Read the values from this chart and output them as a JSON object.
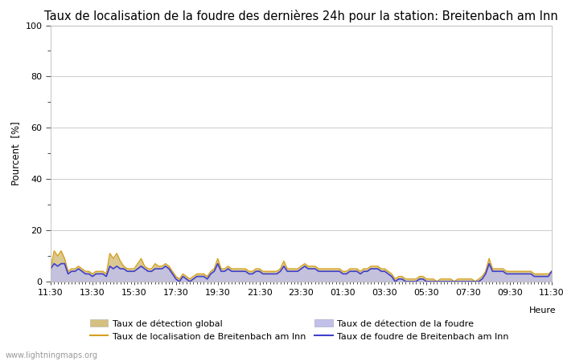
{
  "title": "Taux de localisation de la foudre des dernières 24h pour la station: Breitenbach am Inn",
  "ylabel": "Pourcent  [%]",
  "xlabel_right": "Heure",
  "watermark": "www.lightningmaps.org",
  "x_ticks": [
    "11:30",
    "13:30",
    "15:30",
    "17:30",
    "19:30",
    "21:30",
    "23:30",
    "01:30",
    "03:30",
    "05:30",
    "07:30",
    "09:30",
    "11:30"
  ],
  "ylim": [
    0,
    100
  ],
  "yticks": [
    0,
    20,
    40,
    60,
    80,
    100
  ],
  "yticks_minor": [
    10,
    30,
    50,
    70,
    90
  ],
  "color_global_fill": "#d4c080",
  "color_global_line": "#d4a020",
  "color_foudre_fill": "#c0c0e8",
  "color_foudre_line": "#4040cc",
  "background_color": "#ffffff",
  "grid_color": "#cccccc",
  "title_fontsize": 10.5,
  "label_fontsize": 8.5,
  "tick_fontsize": 8,
  "legend_fontsize": 8,
  "global_detection": [
    5,
    12,
    10,
    12,
    9,
    4,
    5,
    5,
    6,
    5,
    4,
    4,
    3,
    4,
    4,
    4,
    3,
    11,
    9,
    11,
    8,
    6,
    5,
    5,
    5,
    7,
    9,
    6,
    5,
    5,
    7,
    6,
    6,
    7,
    6,
    4,
    2,
    1,
    3,
    2,
    1,
    2,
    3,
    3,
    3,
    2,
    4,
    5,
    9,
    5,
    5,
    6,
    5,
    5,
    5,
    5,
    5,
    4,
    4,
    5,
    5,
    4,
    4,
    4,
    4,
    4,
    5,
    8,
    5,
    5,
    5,
    5,
    6,
    7,
    6,
    6,
    6,
    5,
    5,
    5,
    5,
    5,
    5,
    5,
    4,
    4,
    5,
    5,
    5,
    4,
    5,
    5,
    6,
    6,
    6,
    5,
    5,
    4,
    3,
    1,
    2,
    2,
    1,
    1,
    1,
    1,
    2,
    2,
    1,
    1,
    1,
    0,
    1,
    1,
    1,
    1,
    0,
    1,
    1,
    1,
    1,
    1,
    0,
    1,
    2,
    4,
    9,
    5,
    5,
    5,
    5,
    4,
    4,
    4,
    4,
    4,
    4,
    4,
    4,
    3,
    3,
    3,
    3,
    3,
    4
  ],
  "foudre_detection": [
    5,
    7,
    6,
    7,
    7,
    3,
    4,
    4,
    5,
    4,
    3,
    3,
    2,
    3,
    3,
    3,
    2,
    6,
    5,
    6,
    5,
    5,
    4,
    4,
    4,
    5,
    6,
    5,
    4,
    4,
    5,
    5,
    5,
    6,
    5,
    3,
    1,
    0,
    2,
    1,
    0,
    1,
    2,
    2,
    2,
    1,
    3,
    4,
    7,
    4,
    4,
    5,
    4,
    4,
    4,
    4,
    4,
    3,
    3,
    4,
    4,
    3,
    3,
    3,
    3,
    3,
    4,
    6,
    4,
    4,
    4,
    4,
    5,
    6,
    5,
    5,
    5,
    4,
    4,
    4,
    4,
    4,
    4,
    4,
    3,
    3,
    4,
    4,
    4,
    3,
    4,
    4,
    5,
    5,
    5,
    4,
    4,
    3,
    2,
    0,
    1,
    1,
    0,
    0,
    0,
    0,
    1,
    1,
    0,
    0,
    0,
    0,
    0,
    0,
    0,
    0,
    0,
    0,
    0,
    0,
    0,
    0,
    0,
    0,
    1,
    3,
    7,
    4,
    4,
    4,
    4,
    3,
    3,
    3,
    3,
    3,
    3,
    3,
    3,
    2,
    2,
    2,
    2,
    2,
    4
  ],
  "n_points": 145
}
